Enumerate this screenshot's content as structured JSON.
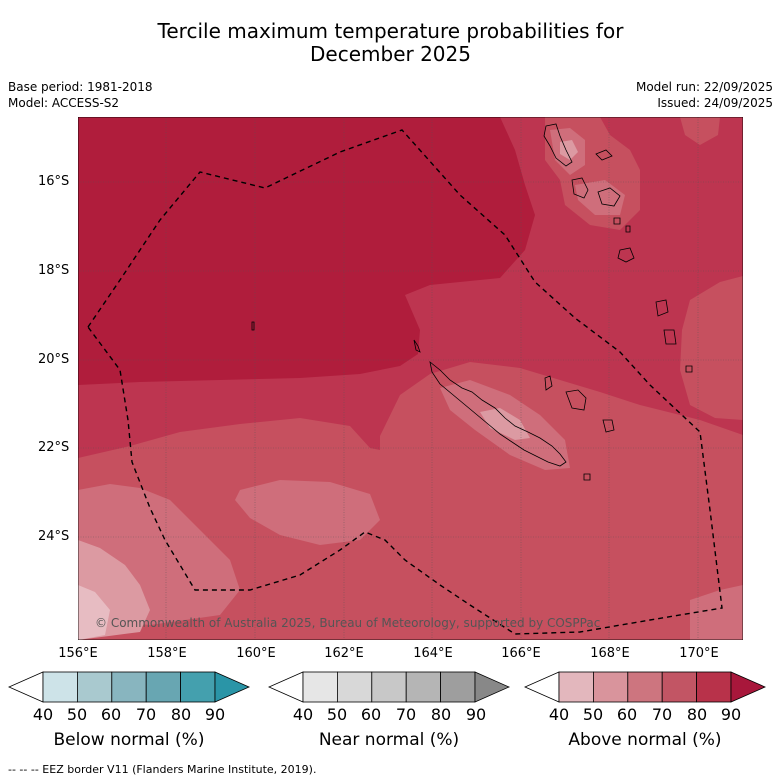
{
  "title_line1": "Tercile maximum temperature probabilities for",
  "title_line2": "December 2025",
  "base_period": "Base period: 1981-2018",
  "model": "Model: ACCESS-S2",
  "model_run": "Model run: 22/09/2025",
  "issued": "Issued: 24/09/2025",
  "copyright": "© Commonwealth of Australia 2025, Bureau of Meteorology, supported by COSPPac",
  "latitudes": [
    "16°S",
    "18°S",
    "20°S",
    "22°S",
    "24°S"
  ],
  "longitudes": [
    "156°E",
    "158°E",
    "160°E",
    "162°E",
    "164°E",
    "166°E",
    "168°E",
    "170°E"
  ],
  "colorbars": [
    {
      "label": "Below normal (%)",
      "ticks": [
        "40",
        "50",
        "60",
        "70",
        "80",
        "90"
      ],
      "colors": [
        "#ffffff",
        "#cde3e8",
        "#a9c9cf",
        "#88b5bf",
        "#68a6b2",
        "#44a0ae",
        "#2a95a7"
      ]
    },
    {
      "label": "Near normal (%)",
      "ticks": [
        "40",
        "50",
        "60",
        "70",
        "80",
        "90"
      ],
      "colors": [
        "#ffffff",
        "#e6e6e6",
        "#d8d8d8",
        "#c8c8c8",
        "#b5b5b5",
        "#9e9e9e",
        "#888888"
      ]
    },
    {
      "label": "Above normal (%)",
      "ticks": [
        "40",
        "50",
        "60",
        "70",
        "80",
        "90"
      ],
      "colors": [
        "#ffffff",
        "#e3b7bd",
        "#d9949c",
        "#cd757f",
        "#c25564",
        "#b8324a",
        "#a8173b"
      ]
    }
  ],
  "footnote": "-- -- -- EEZ border V11 (Flanders Marine Institute, 2019)."
}
